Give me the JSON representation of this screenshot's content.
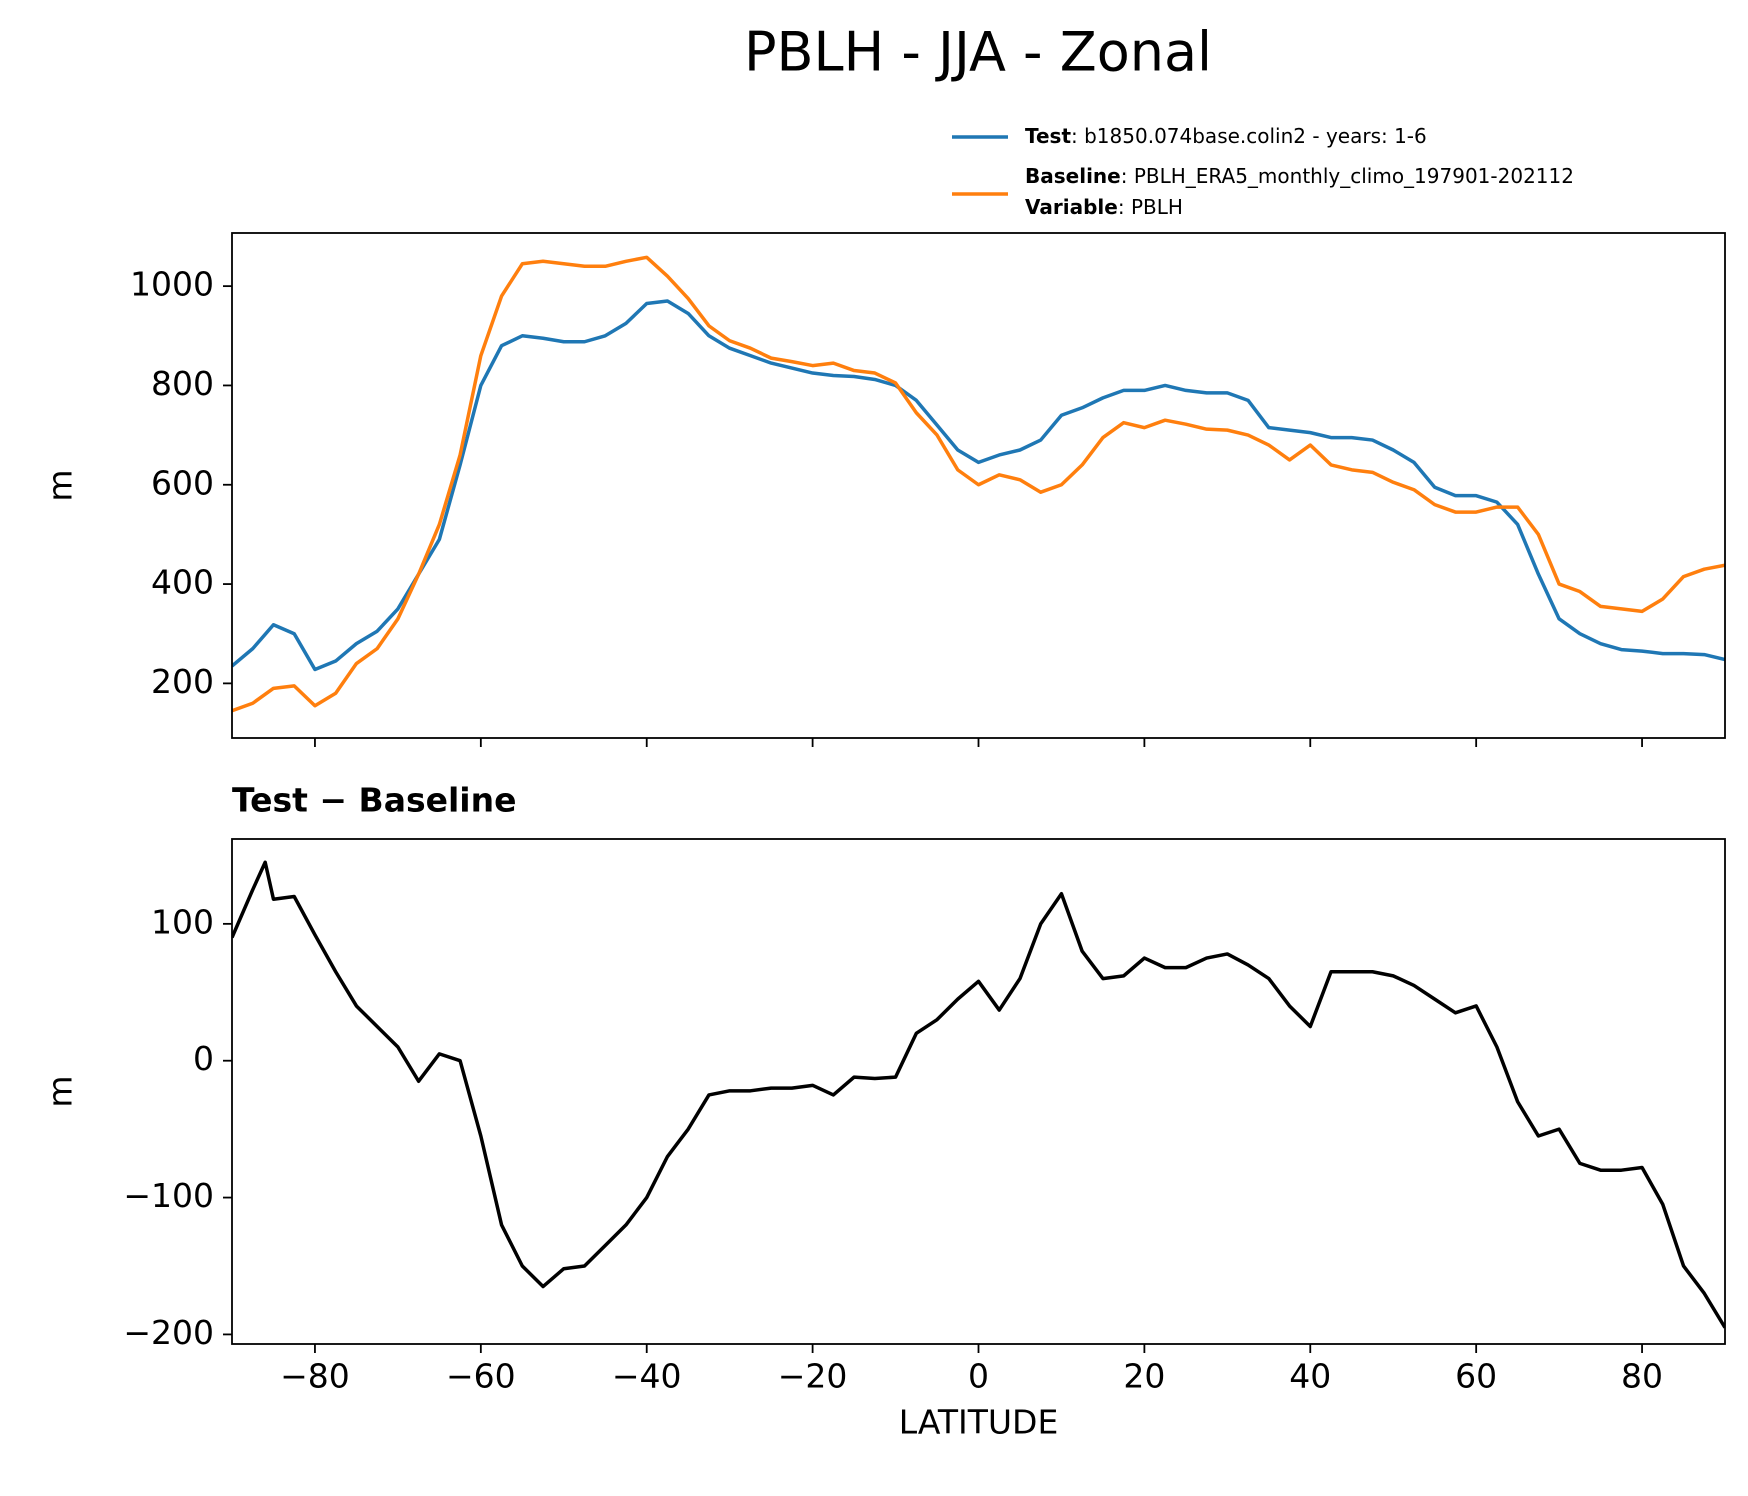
{
  "chart_data": [
    {
      "type": "line",
      "title": "PBLH - JJA - Zonal",
      "ylabel": "m",
      "x": [
        -90,
        -87.5,
        -85,
        -82.5,
        -80,
        -77.5,
        -75,
        -72.5,
        -70,
        -67.5,
        -65,
        -62.5,
        -60,
        -57.5,
        -55,
        -52.5,
        -50,
        -47.5,
        -45,
        -42.5,
        -40,
        -37.5,
        -35,
        -32.5,
        -30,
        -27.5,
        -25,
        -22.5,
        -20,
        -17.5,
        -15,
        -12.5,
        -10,
        -7.5,
        -5,
        -2.5,
        0,
        2.5,
        5,
        7.5,
        10,
        12.5,
        15,
        17.5,
        20,
        22.5,
        25,
        27.5,
        30,
        32.5,
        35,
        37.5,
        40,
        42.5,
        45,
        47.5,
        50,
        52.5,
        55,
        57.5,
        60,
        62.5,
        65,
        67.5,
        70,
        72.5,
        75,
        77.5,
        80,
        82.5,
        85,
        87.5,
        90
      ],
      "series": [
        {
          "name": "Test",
          "description": ": b1850.074base.colin2 - years: 1-6",
          "color": "#1f77b4",
          "values": [
            235,
            270,
            318,
            300,
            228,
            245,
            280,
            305,
            350,
            420,
            490,
            640,
            800,
            880,
            900,
            895,
            888,
            888,
            900,
            925,
            965,
            970,
            945,
            900,
            875,
            860,
            845,
            835,
            825,
            820,
            818,
            812,
            800,
            770,
            720,
            670,
            645,
            660,
            670,
            690,
            740,
            755,
            775,
            790,
            790,
            800,
            790,
            785,
            785,
            770,
            715,
            710,
            705,
            695,
            695,
            690,
            670,
            645,
            595,
            578,
            578,
            565,
            520,
            420,
            330,
            300,
            280,
            268,
            265,
            260,
            260,
            258,
            248
          ]
        },
        {
          "name": "Baseline",
          "description": ": PBLH_ERA5_monthly_climo_197901-202112",
          "color": "#ff7f0e",
          "values": [
            145,
            160,
            190,
            195,
            155,
            180,
            240,
            270,
            330,
            420,
            520,
            660,
            860,
            980,
            1045,
            1050,
            1045,
            1040,
            1040,
            1050,
            1058,
            1020,
            975,
            920,
            890,
            875,
            855,
            848,
            840,
            845,
            830,
            825,
            805,
            745,
            700,
            630,
            600,
            620,
            610,
            585,
            600,
            640,
            695,
            725,
            715,
            730,
            722,
            712,
            710,
            700,
            680,
            650,
            680,
            640,
            630,
            625,
            605,
            590,
            560,
            545,
            545,
            555,
            555,
            500,
            400,
            385,
            355,
            350,
            345,
            370,
            415,
            430,
            438
          ]
        }
      ],
      "legend_note": {
        "name": "Variable",
        "description": ": PBLH"
      },
      "xlim": [
        -90,
        90
      ],
      "xticks": [
        -80,
        -60,
        -40,
        -20,
        0,
        20,
        40,
        60,
        80
      ],
      "ylim": [
        90,
        1107
      ],
      "yticks": [
        200,
        400,
        600,
        800,
        1000
      ]
    },
    {
      "type": "line",
      "title": "Test − Baseline",
      "xlabel": "LATITUDE",
      "ylabel": "m",
      "x": [
        -90,
        -87.5,
        -86,
        -85,
        -82.5,
        -80,
        -77.5,
        -75,
        -72.5,
        -70,
        -67.5,
        -65,
        -62.5,
        -60,
        -57.5,
        -55,
        -52.5,
        -50,
        -47.5,
        -45,
        -42.5,
        -40,
        -37.5,
        -35,
        -32.5,
        -30,
        -27.5,
        -25,
        -22.5,
        -20,
        -17.5,
        -15,
        -12.5,
        -10,
        -7.5,
        -5,
        -2.5,
        0,
        2.5,
        5,
        7.5,
        10,
        12.5,
        15,
        17.5,
        20,
        22.5,
        25,
        27.5,
        30,
        32.5,
        35,
        37.5,
        40,
        42.5,
        45,
        47.5,
        50,
        52.5,
        55,
        57.5,
        60,
        62.5,
        65,
        67.5,
        70,
        72.5,
        75,
        77.5,
        80,
        82.5,
        85,
        87.5,
        90
      ],
      "series": [
        {
          "color": "#000000",
          "values": [
            90,
            125,
            145,
            118,
            120,
            92,
            65,
            40,
            25,
            10,
            -15,
            5,
            0,
            -55,
            -120,
            -150,
            -165,
            -152,
            -150,
            -135,
            -120,
            -100,
            -70,
            -50,
            -25,
            -22,
            -22,
            -20,
            -20,
            -18,
            -25,
            -12,
            -13,
            -12,
            20,
            30,
            45,
            58,
            37,
            60,
            100,
            122,
            80,
            60,
            62,
            75,
            68,
            68,
            75,
            78,
            70,
            60,
            40,
            25,
            65,
            65,
            65,
            62,
            55,
            45,
            35,
            40,
            10,
            -30,
            -55,
            -50,
            -75,
            -80,
            -80,
            -78,
            -105,
            -150,
            -170,
            -195
          ]
        }
      ],
      "xlim": [
        -90,
        90
      ],
      "xticks": [
        {
          "value": -80,
          "label": "−80"
        },
        {
          "value": -60,
          "label": "−60"
        },
        {
          "value": -40,
          "label": "−40"
        },
        {
          "value": -20,
          "label": "−20"
        },
        0,
        20,
        40,
        60,
        80
      ],
      "ylim": [
        -207,
        162
      ],
      "yticks": [
        {
          "value": -200,
          "label": "−200"
        },
        {
          "value": -100,
          "label": "−100"
        },
        0,
        100
      ]
    }
  ]
}
